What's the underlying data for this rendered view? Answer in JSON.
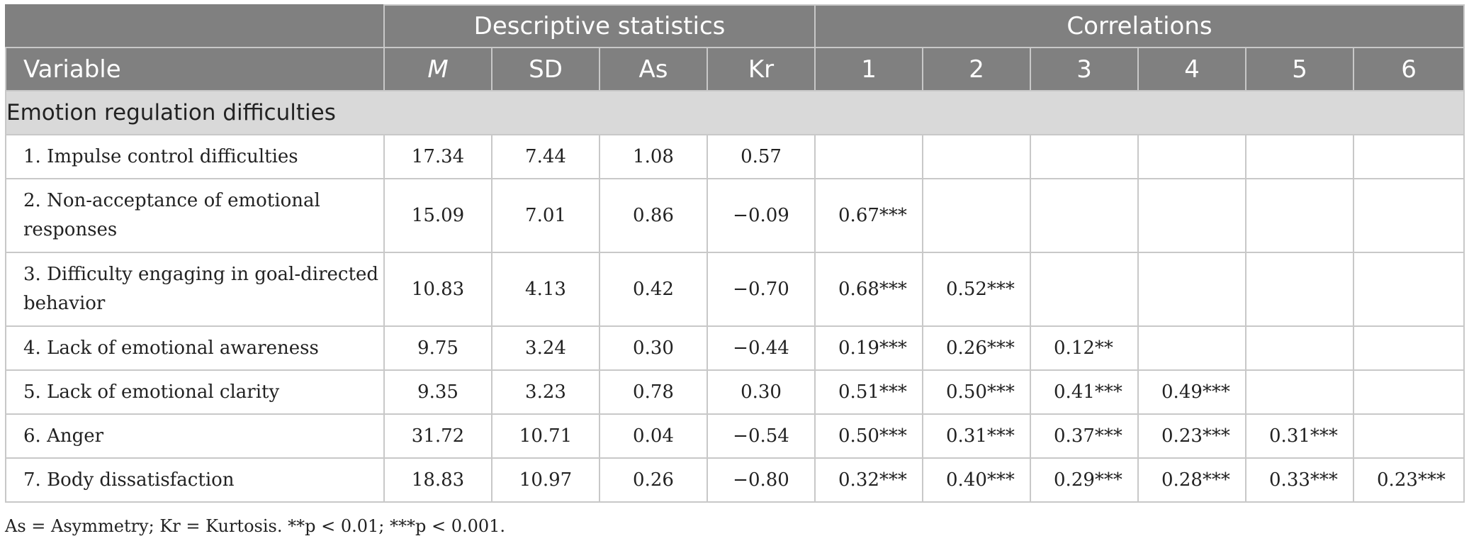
{
  "header": {
    "group_descriptive": "Descriptive statistics",
    "group_correlations": "Correlations",
    "variable": "Variable",
    "m": "M",
    "sd": "SD",
    "as": "As",
    "kr": "Kr",
    "c1": "1",
    "c2": "2",
    "c3": "3",
    "c4": "4",
    "c5": "5",
    "c6": "6"
  },
  "section_title": "Emotion regulation difficulties",
  "rows": [
    {
      "label": "1. Impulse control difficulties",
      "m": "17.34",
      "sd": "7.44",
      "as": "1.08",
      "kr": "0.57",
      "c1": "",
      "c2": "",
      "c3": "",
      "c4": "",
      "c5": "",
      "c6": ""
    },
    {
      "label": "2. Non-acceptance of emotional responses",
      "m": "15.09",
      "sd": "7.01",
      "as": "0.86",
      "kr": "−0.09",
      "c1": "0.67***",
      "c2": "",
      "c3": "",
      "c4": "",
      "c5": "",
      "c6": ""
    },
    {
      "label": "3. Difficulty engaging in goal-directed behavior",
      "m": "10.83",
      "sd": "4.13",
      "as": "0.42",
      "kr": "−0.70",
      "c1": "0.68***",
      "c2": "0.52***",
      "c3": "",
      "c4": "",
      "c5": "",
      "c6": ""
    },
    {
      "label": "4. Lack of emotional awareness",
      "m": "9.75",
      "sd": "3.24",
      "as": "0.30",
      "kr": "−0.44",
      "c1": "0.19***",
      "c2": "0.26***",
      "c3": "0.12**",
      "c4": "",
      "c5": "",
      "c6": ""
    },
    {
      "label": "5. Lack of emotional clarity",
      "m": "9.35",
      "sd": "3.23",
      "as": "0.78",
      "kr": "0.30",
      "c1": "0.51***",
      "c2": "0.50***",
      "c3": "0.41***",
      "c4": "0.49***",
      "c5": "",
      "c6": ""
    },
    {
      "label": "6. Anger",
      "m": "31.72",
      "sd": "10.71",
      "as": "0.04",
      "kr": "−0.54",
      "c1": "0.50***",
      "c2": "0.31***",
      "c3": "0.37***",
      "c4": "0.23***",
      "c5": "0.31***",
      "c6": ""
    },
    {
      "label": "7. Body dissatisfaction",
      "m": "18.83",
      "sd": "10.97",
      "as": "0.26",
      "kr": "−0.80",
      "c1": "0.32***",
      "c2": "0.40***",
      "c3": "0.29***",
      "c4": "0.28***",
      "c5": "0.33***",
      "c6": "0.23***"
    }
  ],
  "footnote": "As = Asymmetry; Kr = Kurtosis. **p < 0.01; ***p < 0.001."
}
